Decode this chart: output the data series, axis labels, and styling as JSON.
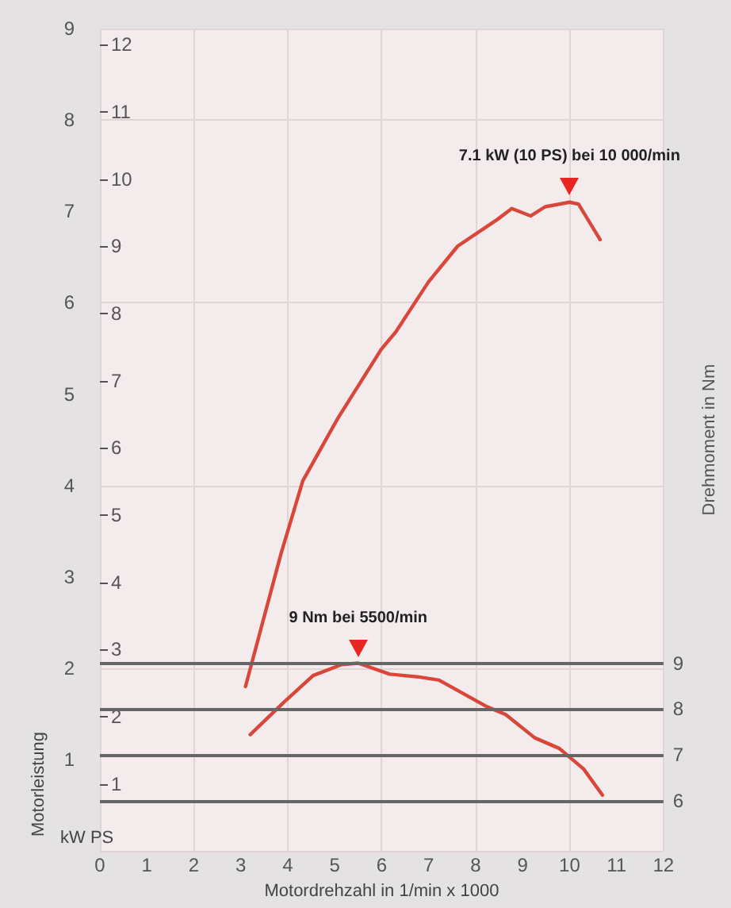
{
  "chart_data": {
    "type": "line",
    "ylabel": "Motorleistung",
    "xlabel": "Motordrehzahl in 1/min x 1000",
    "y2label": "Drehmoment in Nm",
    "xlim": [
      0,
      12
    ],
    "xticks": [
      0,
      1,
      2,
      3,
      4,
      5,
      6,
      7,
      8,
      9,
      10,
      11,
      12
    ],
    "ylim": [
      0,
      9
    ],
    "yticks": [
      1,
      2,
      3,
      4,
      5,
      6,
      7,
      8,
      9
    ],
    "y3lim": [
      0,
      12.24
    ],
    "y3ticks": [
      1,
      2,
      3,
      4,
      5,
      6,
      7,
      8,
      9,
      10,
      11,
      12
    ],
    "y2lim": [
      4.9,
      22.85
    ],
    "y2ticks": [
      6,
      7,
      8,
      9
    ],
    "grid": true,
    "marker": "none",
    "line_style": "solid",
    "series": [
      {
        "color": "#d9463a",
        "x": [
          3.1,
          3.86,
          4.32,
          5.06,
          5.99,
          6.3,
          7.0,
          7.62,
          8.46,
          8.77,
          9.17,
          9.48,
          10,
          10.19,
          10.65
        ],
        "values": [
          1.8,
          3.26,
          4.05,
          4.73,
          5.49,
          5.68,
          6.23,
          6.62,
          6.91,
          7.03,
          6.95,
          7.05,
          7.1,
          7.08,
          6.69
        ]
      },
      {
        "color": "#d9463a",
        "axis": "y2",
        "x": [
          3.2,
          3.92,
          4.54,
          5.15,
          5.5,
          6.17,
          6.79,
          7.22,
          8.24,
          8.64,
          9.26,
          9.78,
          10.3,
          10.7
        ],
        "values": [
          7.44,
          8.15,
          8.73,
          8.97,
          9.0,
          8.76,
          8.7,
          8.63,
          8.05,
          7.88,
          7.37,
          7.14,
          6.69,
          6.12
        ]
      }
    ],
    "annotations": [
      {
        "text": "7.1 kW (10 PS) bei 10 000/min",
        "x": 10,
        "y": 7.1
      },
      "9 Nm bei 5500/min",
      "kW PS"
    ]
  }
}
